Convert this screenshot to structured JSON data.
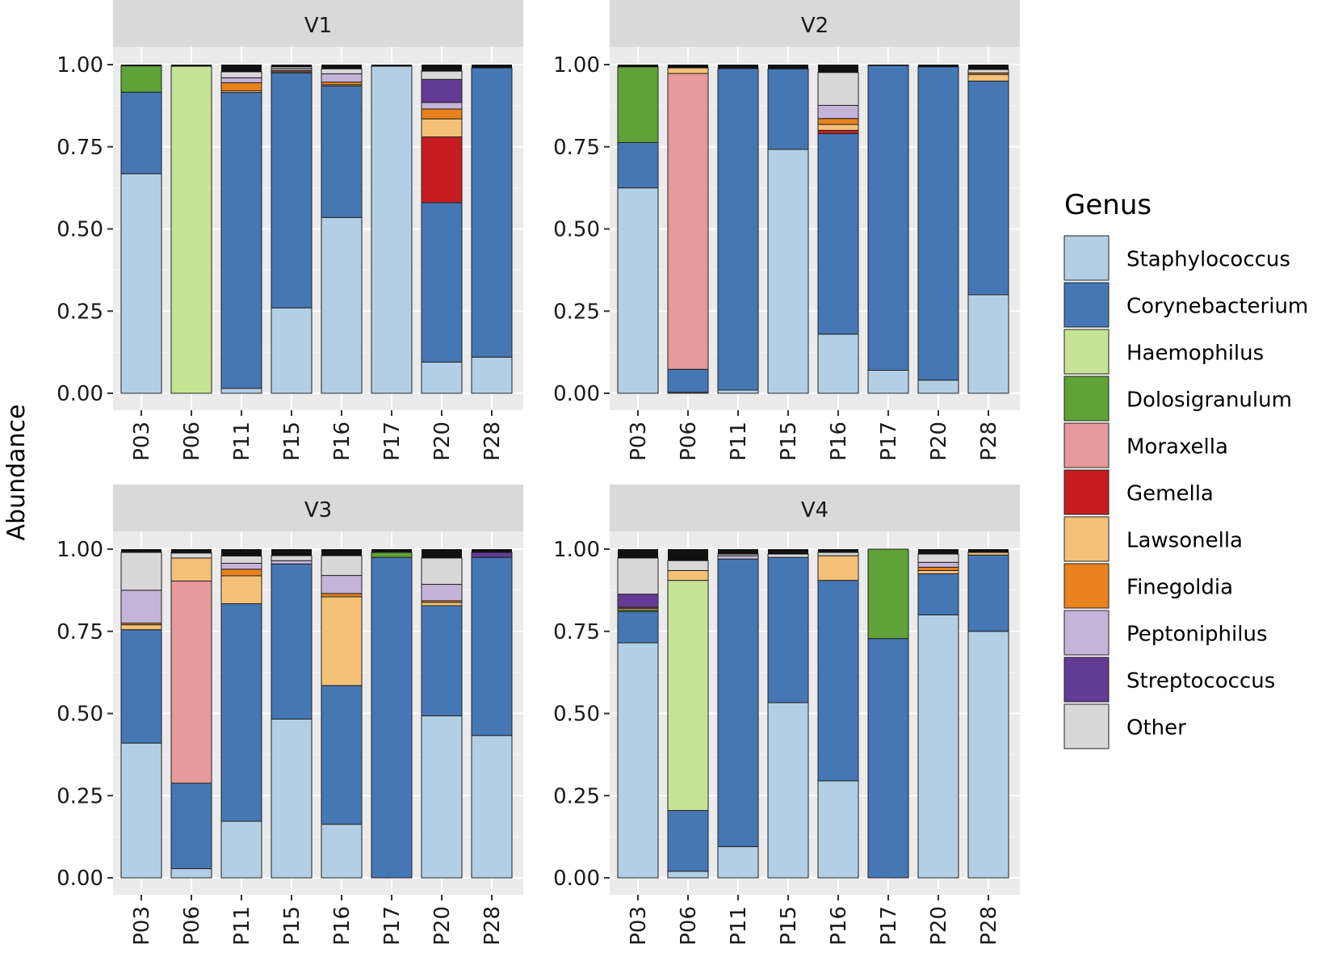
{
  "chart_data": {
    "type": "bar",
    "stacked": true,
    "ylabel": "Abundance",
    "ylim": [
      0,
      1
    ],
    "yticks": [
      "0.00",
      "0.25",
      "0.50",
      "0.75",
      "1.00"
    ],
    "yticks_values": [
      0,
      0.25,
      0.5,
      0.75,
      1.0
    ],
    "legend_title": "Genus",
    "legend_position": "right",
    "series": [
      {
        "name": "Staphylococcus",
        "color": "#b3cfe6"
      },
      {
        "name": "Corynebacterium",
        "color": "#4677b5"
      },
      {
        "name": "Haemophilus",
        "color": "#c6e495"
      },
      {
        "name": "Dolosigranulum",
        "color": "#5fa237"
      },
      {
        "name": "Moraxella",
        "color": "#e8999a"
      },
      {
        "name": "Gemella",
        "color": "#c81d20"
      },
      {
        "name": "Lawsonella",
        "color": "#f4c177"
      },
      {
        "name": "Finegoldia",
        "color": "#e8821c"
      },
      {
        "name": "Peptoniphilus",
        "color": "#c4b4da"
      },
      {
        "name": "Streptococcus",
        "color": "#633b95"
      },
      {
        "name": "Other",
        "color": "#d8d8d8"
      }
    ],
    "panels": [
      {
        "title": "V1",
        "categories": [
          "P03",
          "P06",
          "P11",
          "P15",
          "P16",
          "P17",
          "P20",
          "P28"
        ],
        "values": [
          [
            0.668,
            0.248,
            0,
            0.08,
            0,
            0,
            0,
            0,
            0,
            0,
            0
          ],
          [
            0,
            0,
            0.995,
            0,
            0,
            0,
            0,
            0,
            0,
            0,
            0
          ],
          [
            0.015,
            0.9,
            0,
            0,
            0,
            0,
            0.005,
            0.025,
            0.015,
            0,
            0.018
          ],
          [
            0.26,
            0.715,
            0,
            0,
            0,
            0,
            0.003,
            0.004,
            0.006,
            0,
            0.005
          ],
          [
            0.535,
            0.4,
            0,
            0,
            0,
            0,
            0.004,
            0.008,
            0.025,
            0,
            0.015
          ],
          [
            0.995,
            0,
            0,
            0,
            0,
            0,
            0,
            0,
            0,
            0,
            0
          ],
          [
            0.095,
            0.485,
            0,
            0,
            0,
            0.2,
            0.055,
            0.03,
            0.02,
            0.07,
            0.025
          ],
          [
            0.11,
            0.88,
            0,
            0,
            0,
            0,
            0,
            0,
            0,
            0,
            0
          ]
        ]
      },
      {
        "title": "V2",
        "categories": [
          "P03",
          "P06",
          "P11",
          "P15",
          "P16",
          "P17",
          "P20",
          "P28"
        ],
        "values": [
          [
            0.625,
            0.138,
            0,
            0.23,
            0,
            0,
            0,
            0,
            0,
            0,
            0
          ],
          [
            0.003,
            0.07,
            0,
            0,
            0.9,
            0,
            0.017,
            0,
            0,
            0,
            0
          ],
          [
            0.01,
            0.978,
            0,
            0,
            0,
            0,
            0,
            0,
            0,
            0,
            0
          ],
          [
            0.742,
            0.245,
            0,
            0,
            0,
            0,
            0,
            0,
            0,
            0,
            0
          ],
          [
            0.18,
            0.61,
            0,
            0,
            0,
            0.01,
            0.018,
            0.018,
            0.04,
            0,
            0.1
          ],
          [
            0.07,
            0.927,
            0,
            0,
            0,
            0,
            0,
            0,
            0,
            0,
            0
          ],
          [
            0.04,
            0.953,
            0,
            0,
            0,
            0,
            0,
            0,
            0,
            0,
            0
          ],
          [
            0.3,
            0.65,
            0,
            0,
            0,
            0,
            0.02,
            0.005,
            0,
            0,
            0.01
          ]
        ]
      },
      {
        "title": "V3",
        "categories": [
          "P03",
          "P06",
          "P11",
          "P15",
          "P16",
          "P17",
          "P20",
          "P28"
        ],
        "values": [
          [
            0.41,
            0.345,
            0,
            0,
            0,
            0,
            0.015,
            0.005,
            0.1,
            0,
            0.115
          ],
          [
            0.028,
            0.26,
            0,
            0,
            0.615,
            0,
            0.07,
            0,
            0,
            0,
            0.015
          ],
          [
            0.172,
            0.662,
            0,
            0,
            0,
            0,
            0.085,
            0.02,
            0.018,
            0,
            0.022
          ],
          [
            0.483,
            0.472,
            0,
            0,
            0,
            0,
            0,
            0,
            0.01,
            0,
            0.015
          ],
          [
            0.163,
            0.422,
            0,
            0,
            0,
            0,
            0.27,
            0.01,
            0.055,
            0,
            0.06
          ],
          [
            0,
            0.975,
            0,
            0.015,
            0,
            0,
            0,
            0,
            0,
            0,
            0
          ],
          [
            0.493,
            0.335,
            0,
            0,
            0,
            0,
            0.01,
            0.005,
            0.05,
            0,
            0.08
          ],
          [
            0.433,
            0.542,
            0,
            0,
            0,
            0,
            0,
            0,
            0,
            0.015,
            0
          ]
        ]
      },
      {
        "title": "V4",
        "categories": [
          "P03",
          "P06",
          "P11",
          "P15",
          "P16",
          "P17",
          "P20",
          "P28"
        ],
        "values": [
          [
            0.715,
            0.095,
            0,
            0.005,
            0,
            0,
            0.005,
            0.003,
            0,
            0.04,
            0.11
          ],
          [
            0.02,
            0.185,
            0.7,
            0,
            0,
            0,
            0.03,
            0,
            0,
            0,
            0.03
          ],
          [
            0.095,
            0.875,
            0,
            0,
            0,
            0,
            0,
            0,
            0.01,
            0,
            0.005
          ],
          [
            0.533,
            0.442,
            0,
            0,
            0,
            0,
            0,
            0,
            0,
            0,
            0.01
          ],
          [
            0.295,
            0.61,
            0,
            0,
            0,
            0,
            0.075,
            0,
            0,
            0,
            0.01
          ],
          [
            0,
            0.728,
            0,
            0.272,
            0,
            0,
            0,
            0,
            0,
            0,
            0
          ],
          [
            0.8,
            0.125,
            0,
            0,
            0,
            0,
            0.01,
            0.01,
            0.015,
            0,
            0.025
          ],
          [
            0.75,
            0.232,
            0,
            0,
            0,
            0,
            0.008,
            0,
            0,
            0,
            0
          ]
        ]
      }
    ]
  }
}
